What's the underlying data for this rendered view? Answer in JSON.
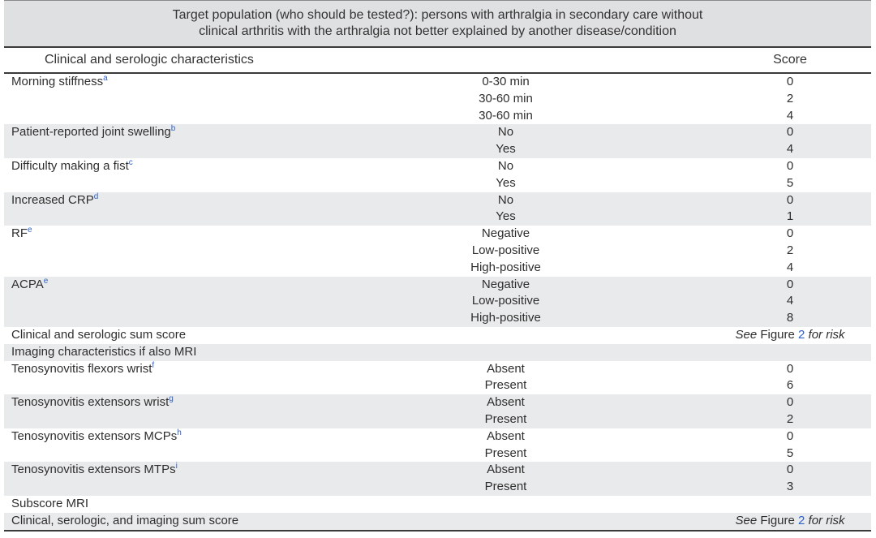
{
  "caption": {
    "line1": "Target population (who should be tested?): persons with arthralgia in secondary care without",
    "line2": "clinical arthritis with the arthralgia not better explained by another disease/condition"
  },
  "header": {
    "characteristics": "Clinical and serologic characteristics",
    "score": "Score"
  },
  "see_figure": {
    "see": "See",
    "figure": "Figure",
    "num": "2",
    "for_risk": "for risk"
  },
  "rows": [
    {
      "label": "Morning stiffness",
      "sup": "a",
      "value": "0-30 min",
      "score": "0"
    },
    {
      "label": "",
      "sup": "",
      "value": "30-60 min",
      "score": "2"
    },
    {
      "label": "",
      "sup": "",
      "value": "30-60 min",
      "score": "4"
    },
    {
      "label": "Patient-reported joint swelling",
      "sup": "b",
      "value": "No",
      "score": "0"
    },
    {
      "label": "",
      "sup": "",
      "value": "Yes",
      "score": "4"
    },
    {
      "label": "Difficulty making a fist",
      "sup": "c",
      "value": "No",
      "score": "0"
    },
    {
      "label": "",
      "sup": "",
      "value": "Yes",
      "score": "5"
    },
    {
      "label": "Increased CRP",
      "sup": "d",
      "value": "No",
      "score": "0"
    },
    {
      "label": "",
      "sup": "",
      "value": "Yes",
      "score": "1"
    },
    {
      "label": "RF",
      "sup": "e",
      "value": "Negative",
      "score": "0"
    },
    {
      "label": "",
      "sup": "",
      "value": "Low-positive",
      "score": "2"
    },
    {
      "label": "",
      "sup": "",
      "value": "High-positive",
      "score": "4"
    },
    {
      "label": "ACPA",
      "sup": "e",
      "value": "Negative",
      "score": "0"
    },
    {
      "label": "",
      "sup": "",
      "value": "Low-positive",
      "score": "4"
    },
    {
      "label": "",
      "sup": "",
      "value": "High-positive",
      "score": "8"
    },
    {
      "label": "Clinical and serologic sum score",
      "sup": "",
      "value": "",
      "score": "",
      "see_figure": true
    },
    {
      "label": "Imaging characteristics if also MRI",
      "sup": "",
      "value": "",
      "score": ""
    },
    {
      "label": "Tenosynovitis flexors wrist",
      "sup": "f",
      "value": "Absent",
      "score": "0"
    },
    {
      "label": "",
      "sup": "",
      "value": "Present",
      "score": "6"
    },
    {
      "label": "Tenosynovitis extensors wrist",
      "sup": "g",
      "value": "Absent",
      "score": "0"
    },
    {
      "label": "",
      "sup": "",
      "value": "Present",
      "score": "2"
    },
    {
      "label": "Tenosynovitis extensors MCPs",
      "sup": "h",
      "value": "Absent",
      "score": "0"
    },
    {
      "label": "",
      "sup": "",
      "value": "Present",
      "score": "5"
    },
    {
      "label": "Tenosynovitis extensors MTPs",
      "sup": "i",
      "value": "Absent",
      "score": "0"
    },
    {
      "label": "",
      "sup": "",
      "value": "Present",
      "score": "3"
    },
    {
      "label": "Subscore MRI",
      "sup": "",
      "value": "",
      "score": ""
    },
    {
      "label": "Clinical, serologic, and imaging sum score",
      "sup": "",
      "value": "",
      "score": "",
      "see_figure": true
    }
  ],
  "shaded_rows": [
    0,
    0,
    0,
    1,
    1,
    0,
    0,
    1,
    1,
    0,
    0,
    0,
    1,
    1,
    1,
    0,
    1,
    0,
    0,
    1,
    1,
    0,
    0,
    1,
    1,
    0,
    1
  ]
}
